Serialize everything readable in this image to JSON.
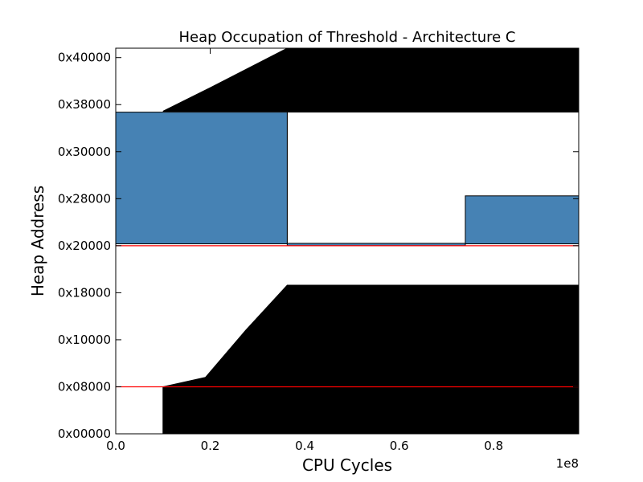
{
  "chart_data": {
    "type": "area",
    "title": "Heap Occupation of Threshold - Architecture C",
    "xlabel": "CPU Cycles",
    "ylabel": "Heap Address",
    "x_multiplier_label": "1e8",
    "xlim": [
      0,
      98000000
    ],
    "ylim": [
      0,
      4.1
    ],
    "grid": false,
    "legend": "none",
    "x_ticks": [
      {
        "value": 0,
        "label": "0.0"
      },
      {
        "value": 20000000,
        "label": "0.2"
      },
      {
        "value": 40000000,
        "label": "0.4"
      },
      {
        "value": 60000000,
        "label": "0.6"
      },
      {
        "value": 80000000,
        "label": "0.8"
      }
    ],
    "y_ticks": [
      {
        "value": 0,
        "label": "0x00000"
      },
      {
        "value": 0.5,
        "label": "0x08000"
      },
      {
        "value": 1.0,
        "label": "0x10000"
      },
      {
        "value": 1.5,
        "label": "0x18000"
      },
      {
        "value": 2.0,
        "label": "0x20000"
      },
      {
        "value": 2.5,
        "label": "0x28000"
      },
      {
        "value": 3.0,
        "label": "0x30000"
      },
      {
        "value": 3.5,
        "label": "0x38000"
      },
      {
        "value": 4.0,
        "label": "0x40000"
      }
    ],
    "black_regions": [
      {
        "name": "lower black region",
        "color": "#000000",
        "top": [
          [
            10000000,
            0.5
          ],
          [
            19000000,
            0.6
          ],
          [
            27500000,
            1.1
          ],
          [
            36300000,
            1.58
          ],
          [
            98000000,
            1.58
          ]
        ],
        "bottom": [
          [
            10000000,
            0.0
          ],
          [
            98000000,
            0.0
          ]
        ]
      },
      {
        "name": "upper black region",
        "color": "#000000",
        "top": [
          [
            10000000,
            3.43
          ],
          [
            20000000,
            3.68
          ],
          [
            36300000,
            4.1
          ],
          [
            98000000,
            4.1
          ]
        ],
        "bottom": [
          [
            10000000,
            3.43
          ],
          [
            98000000,
            3.43
          ]
        ]
      }
    ],
    "blue_blocks": [
      {
        "color": "#4682b4",
        "x0": 0,
        "x1": 36300000,
        "y0": 2.02,
        "y1": 3.42
      },
      {
        "color": "#4682b4",
        "x0": 74000000,
        "x1": 98000000,
        "y0": 2.02,
        "y1": 2.53
      }
    ],
    "thin_strips": [
      {
        "x0": 36300000,
        "x1": 74000000,
        "y0": 2.0,
        "y1": 2.025
      }
    ],
    "outline_blocks": [
      {
        "x0": 36300000,
        "x1": 98000000,
        "y0": 2.02,
        "y1": 3.42
      }
    ],
    "threshold_lines": [
      {
        "color": "#ff0000",
        "y": 2.0
      },
      {
        "color": "#ff0000",
        "y": 0.5
      }
    ]
  }
}
